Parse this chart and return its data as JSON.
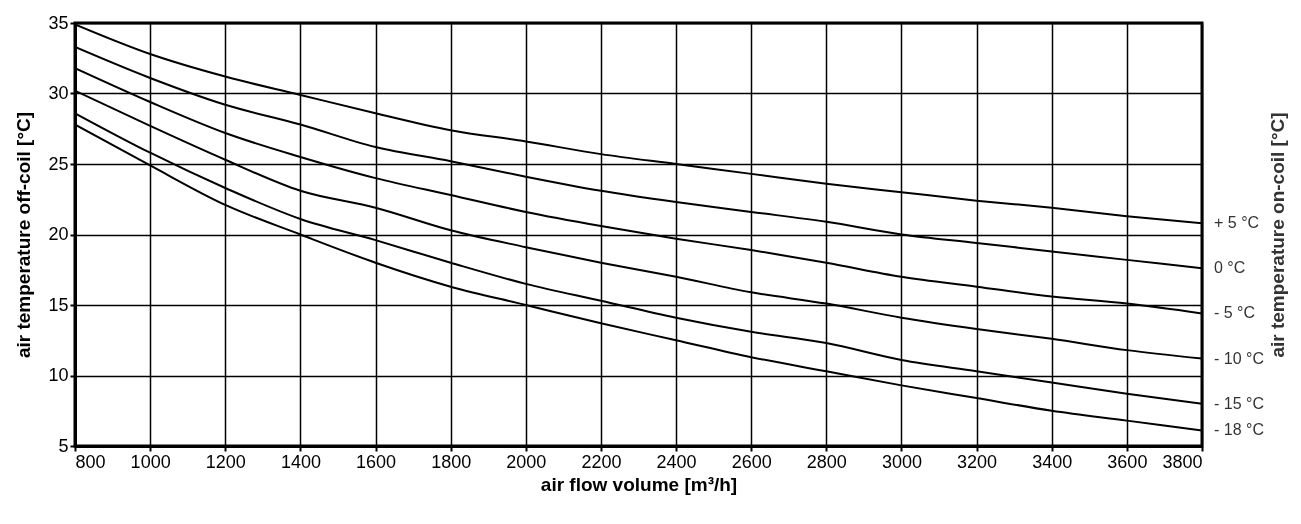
{
  "chart_data": {
    "type": "line",
    "xlabel": "air flow volume [m³/h]",
    "ylabel": "air temperature off-coil [°C]",
    "y2label": "air temperature on-coil [°C]",
    "x": [
      800,
      1000,
      1200,
      1400,
      1600,
      1800,
      2000,
      2200,
      2400,
      2600,
      2800,
      3000,
      3200,
      3400,
      3600,
      3800
    ],
    "series": [
      {
        "name": "+  5 °C",
        "color": "#000000",
        "values": [
          34.9,
          32.8,
          31.2,
          29.9,
          28.6,
          27.4,
          26.6,
          25.7,
          25.0,
          24.3,
          23.6,
          23.0,
          22.4,
          21.9,
          21.3,
          20.8
        ]
      },
      {
        "name": "0 °C",
        "color": "#000000",
        "values": [
          33.3,
          31.1,
          29.2,
          27.8,
          26.2,
          25.2,
          24.1,
          23.1,
          22.3,
          21.6,
          20.9,
          20.0,
          19.4,
          18.8,
          18.2,
          17.6
        ]
      },
      {
        "name": "-  5 °C",
        "color": "#000000",
        "values": [
          31.8,
          29.4,
          27.2,
          25.5,
          24.0,
          22.8,
          21.6,
          20.6,
          19.7,
          18.9,
          18.0,
          17.0,
          16.3,
          15.6,
          15.1,
          14.4
        ]
      },
      {
        "name": "- 10 °C",
        "color": "#000000",
        "values": [
          30.2,
          27.7,
          25.3,
          23.1,
          21.9,
          20.3,
          19.1,
          18.0,
          17.0,
          15.9,
          15.1,
          14.1,
          13.3,
          12.6,
          11.8,
          11.2
        ]
      },
      {
        "name": "- 15 °C",
        "color": "#000000",
        "values": [
          28.6,
          25.8,
          23.3,
          21.1,
          19.6,
          18.0,
          16.5,
          15.3,
          14.1,
          13.1,
          12.3,
          11.1,
          10.3,
          9.5,
          8.7,
          8.0
        ]
      },
      {
        "name": "- 18 °C",
        "color": "#000000",
        "values": [
          27.8,
          24.9,
          22.1,
          20.0,
          18.0,
          16.3,
          15.0,
          13.7,
          12.5,
          11.3,
          10.3,
          9.3,
          8.4,
          7.5,
          6.8,
          6.1
        ]
      }
    ],
    "xlim": [
      800,
      3800
    ],
    "xticks": [
      800,
      1000,
      1200,
      1400,
      1600,
      1800,
      2000,
      2200,
      2400,
      2600,
      2800,
      3000,
      3200,
      3400,
      3600,
      3800
    ],
    "ylim": [
      5,
      35
    ],
    "yticks": [
      5,
      10,
      15,
      20,
      25,
      30,
      35
    ],
    "grid": true,
    "legend": false,
    "marker": "none",
    "line_style": "solid"
  }
}
